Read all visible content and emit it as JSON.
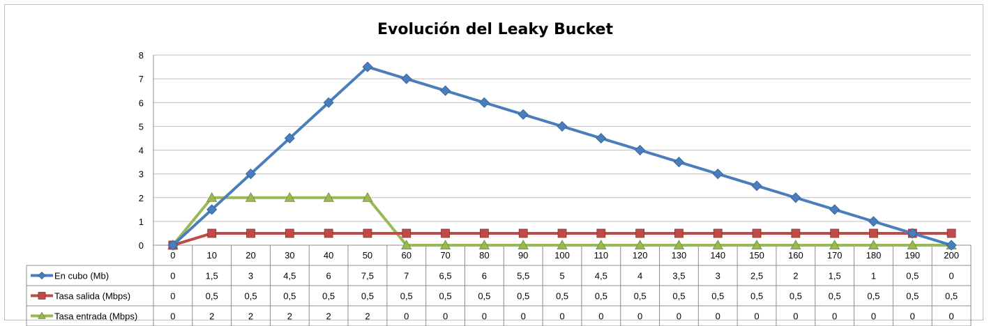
{
  "chart_data": {
    "type": "line",
    "title": "Evolución del Leaky Bucket",
    "categories": [
      "0",
      "10",
      "20",
      "30",
      "40",
      "50",
      "60",
      "70",
      "80",
      "90",
      "100",
      "110",
      "120",
      "130",
      "140",
      "150",
      "160",
      "170",
      "180",
      "190",
      "200"
    ],
    "ylim": [
      0,
      8
    ],
    "yticks": [
      0,
      1,
      2,
      3,
      4,
      5,
      6,
      7,
      8
    ],
    "grid": true,
    "legend": "data-table",
    "series": [
      {
        "name": "En cubo (Mb)",
        "color": "#4a7ebb",
        "marker": "diamond",
        "values": [
          0,
          1.5,
          3,
          4.5,
          6,
          7.5,
          7,
          6.5,
          6,
          5.5,
          5,
          4.5,
          4,
          3.5,
          3,
          2.5,
          2,
          1.5,
          1,
          0.5,
          0
        ],
        "labels": [
          "0",
          "1,5",
          "3",
          "4,5",
          "6",
          "7,5",
          "7",
          "6,5",
          "6",
          "5,5",
          "5",
          "4,5",
          "4",
          "3,5",
          "3",
          "2,5",
          "2",
          "1,5",
          "1",
          "0,5",
          "0"
        ]
      },
      {
        "name": "Tasa salida (Mbps)",
        "color": "#be4b48",
        "marker": "square",
        "values": [
          0,
          0.5,
          0.5,
          0.5,
          0.5,
          0.5,
          0.5,
          0.5,
          0.5,
          0.5,
          0.5,
          0.5,
          0.5,
          0.5,
          0.5,
          0.5,
          0.5,
          0.5,
          0.5,
          0.5,
          0.5
        ],
        "labels": [
          "0",
          "0,5",
          "0,5",
          "0,5",
          "0,5",
          "0,5",
          "0,5",
          "0,5",
          "0,5",
          "0,5",
          "0,5",
          "0,5",
          "0,5",
          "0,5",
          "0,5",
          "0,5",
          "0,5",
          "0,5",
          "0,5",
          "0,5",
          "0,5"
        ]
      },
      {
        "name": "Tasa entrada (Mbps)",
        "color": "#98b954",
        "marker": "triangle",
        "values": [
          0,
          2,
          2,
          2,
          2,
          2,
          0,
          0,
          0,
          0,
          0,
          0,
          0,
          0,
          0,
          0,
          0,
          0,
          0,
          0,
          0
        ],
        "labels": [
          "0",
          "2",
          "2",
          "2",
          "2",
          "2",
          "0",
          "0",
          "0",
          "0",
          "0",
          "0",
          "0",
          "0",
          "0",
          "0",
          "0",
          "0",
          "0",
          "0",
          "0"
        ]
      }
    ]
  }
}
